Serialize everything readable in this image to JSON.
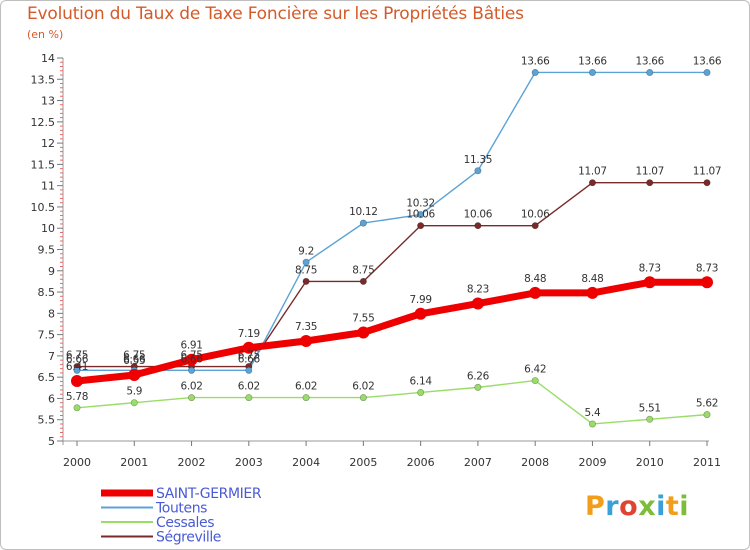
{
  "header": {
    "title": "Evolution du Taux de Taxe Foncière sur les Propriétés Bâties",
    "subtitle": "(en %)"
  },
  "logo": {
    "text": "Proxiti",
    "letters": [
      {
        "ch": "P",
        "color": "#f29e1c"
      },
      {
        "ch": "r",
        "color": "#3aa0d8"
      },
      {
        "ch": "o",
        "color": "#e0432f"
      },
      {
        "ch": "x",
        "color": "#7dbd3a"
      },
      {
        "ch": "i",
        "color": "#3aa0d8"
      },
      {
        "ch": "t",
        "color": "#f29e1c"
      },
      {
        "ch": "i",
        "color": "#7dbd3a"
      }
    ]
  },
  "chart_data": {
    "type": "line",
    "title": "Evolution du Taux de Taxe Foncière sur les Propriétés Bâties",
    "ylabel": "(en %)",
    "xlabel": "",
    "ylim": [
      5,
      14
    ],
    "yticks_major": [
      "5",
      "5.5",
      "6",
      "6.5",
      "7",
      "7.5",
      "8",
      "8.5",
      "9",
      "9.5",
      "10",
      "10.5",
      "11",
      "11.5",
      "12",
      "12.5",
      "13",
      "13.5",
      "14"
    ],
    "grid": false,
    "legend_position": "bottom-left",
    "categories": [
      "2000",
      "2001",
      "2002",
      "2003",
      "2004",
      "2005",
      "2006",
      "2007",
      "2008",
      "2009",
      "2010",
      "2011"
    ],
    "series": [
      {
        "name": "SAINT-GERMIER",
        "color": "#ee0000",
        "values": [
          6.41,
          6.55,
          6.91,
          7.19,
          7.35,
          7.55,
          7.99,
          8.23,
          8.48,
          8.48,
          8.73,
          8.73
        ],
        "labels": [
          "6.41",
          "6.55",
          "6.91",
          "7.19",
          "7.35",
          "7.55",
          "7.99",
          "8.23",
          "8.48",
          "8.48",
          "8.73",
          "8.73"
        ]
      },
      {
        "name": "Toutens",
        "color": "#5ba3d6",
        "values": [
          6.66,
          6.66,
          6.66,
          6.66,
          9.2,
          10.12,
          10.32,
          11.35,
          13.66,
          13.66,
          13.66,
          13.66
        ],
        "labels": [
          "6.66",
          "6.66",
          "6.66",
          "6.66",
          "9.2",
          "10.12",
          "10.32",
          "11.35",
          "13.66",
          "13.66",
          "13.66",
          "13.66"
        ]
      },
      {
        "name": "Cessales",
        "color": "#99dd66",
        "values": [
          5.78,
          5.9,
          6.02,
          6.02,
          6.02,
          6.02,
          6.14,
          6.26,
          6.42,
          5.4,
          5.51,
          5.62
        ],
        "labels": [
          "5.78",
          "5.9",
          "6.02",
          "6.02",
          "6.02",
          "6.02",
          "6.14",
          "6.26",
          "6.42",
          "5.4",
          "5.51",
          "5.62"
        ]
      },
      {
        "name": "Ségreville",
        "color": "#7a2a2a",
        "values": [
          6.75,
          6.75,
          6.75,
          6.75,
          8.75,
          8.75,
          10.06,
          10.06,
          10.06,
          11.07,
          11.07,
          11.07
        ],
        "labels": [
          "6.75",
          "6.75",
          "6.75",
          "6.75",
          "8.75",
          "8.75",
          "10.06",
          "10.06",
          "10.06",
          "11.07",
          "11.07",
          "11.07"
        ]
      }
    ]
  }
}
